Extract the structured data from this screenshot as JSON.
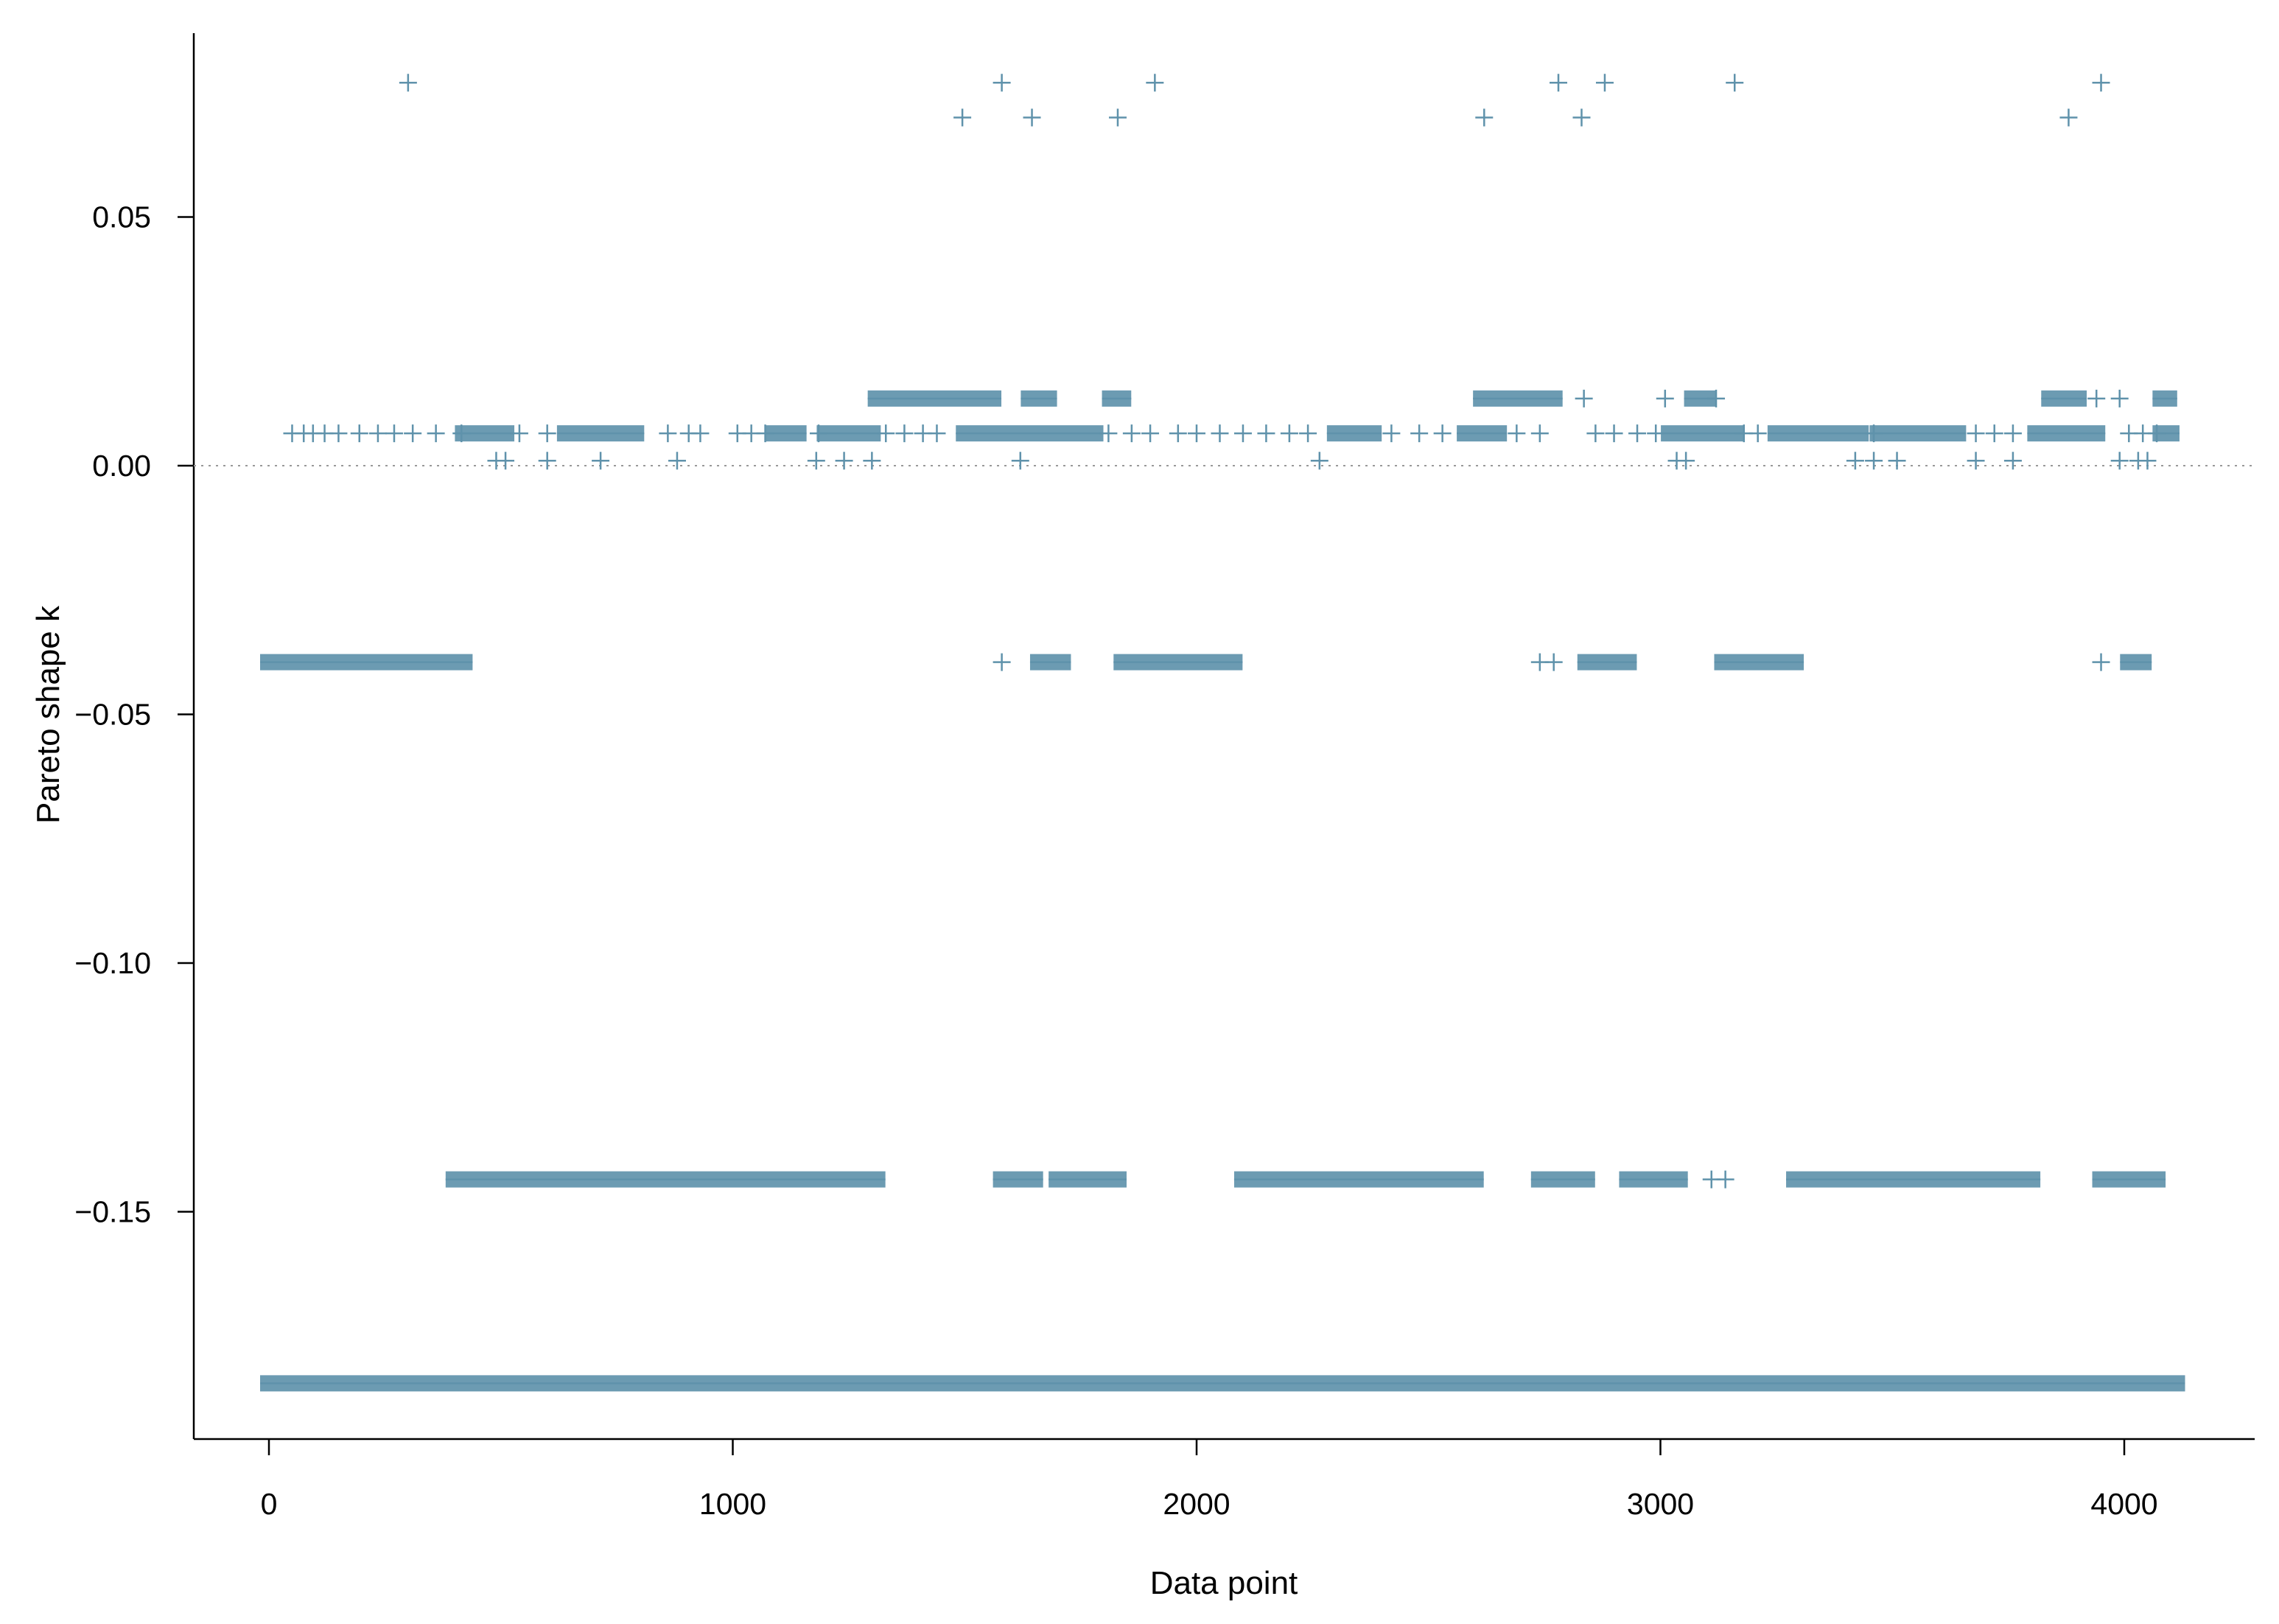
{
  "chart_data": {
    "type": "scatter",
    "title": "",
    "xlabel": "Data point",
    "ylabel": "Pareto shape k",
    "xlim": [
      -200,
      4300
    ],
    "ylim": [
      -0.195,
      0.085
    ],
    "x_ticks": [
      0,
      1000,
      2000,
      3000,
      4000
    ],
    "x_tick_labels": [
      "0",
      "1000",
      "2000",
      "3000",
      "4000"
    ],
    "y_ticks": [
      0.05,
      0.0,
      -0.05,
      -0.1,
      -0.15
    ],
    "y_tick_labels": [
      "0.05",
      "0.00",
      "−0.05",
      "−0.10",
      "−0.15"
    ],
    "reference_line": {
      "y": 0.0,
      "style": "dotted"
    },
    "marker": "+",
    "colors": {
      "points": "#5f92ab",
      "axis": "#000000",
      "reference": "#999999"
    },
    "grid": false,
    "legend": "none",
    "n_points": 4112,
    "levels": [
      {
        "k": 0.077,
        "points": [
          300,
          1580,
          1910,
          2780,
          2880,
          3160,
          3950
        ]
      },
      {
        "k": 0.07,
        "points": [
          1495,
          1645,
          1830,
          2620,
          2830,
          3880
        ]
      },
      {
        "k": 0.0135,
        "clusters": [
          [
            1310,
            1560
          ],
          [
            1640,
            1680
          ],
          [
            1815,
            1840
          ],
          [
            2615,
            2770
          ],
          [
            3070,
            3100
          ],
          [
            3840,
            3900
          ],
          [
            4080,
            4095
          ]
        ],
        "points": [
          2835,
          3010,
          3120,
          3940,
          3990
        ]
      },
      {
        "k": 0.0065,
        "clusters": [
          [
            420,
            510
          ],
          [
            640,
            790
          ],
          [
            1090,
            1140
          ],
          [
            1200,
            1300
          ],
          [
            1500,
            1780
          ],
          [
            2300,
            2380
          ],
          [
            2580,
            2650
          ],
          [
            3020,
            3160
          ],
          [
            3250,
            3430
          ],
          [
            3470,
            3640
          ],
          [
            3810,
            3940
          ],
          [
            4080,
            4100
          ]
        ],
        "points": [
          50,
          75,
          95,
          120,
          150,
          195,
          235,
          270,
          310,
          360,
          415,
          540,
          600,
          860,
          905,
          930,
          1010,
          1040,
          1070,
          1185,
          1330,
          1370,
          1410,
          1440,
          1810,
          1860,
          1900,
          1960,
          2000,
          2050,
          2100,
          2150,
          2200,
          2240,
          2420,
          2480,
          2530,
          2690,
          2740,
          2860,
          2900,
          2950,
          2990,
          3180,
          3210,
          3460,
          3680,
          3720,
          3760,
          4010,
          4040,
          4070
        ]
      },
      {
        "k": 0.001,
        "points": [
          490,
          510,
          600,
          715,
          880,
          1180,
          1240,
          1300,
          1620,
          2265,
          3035,
          3055,
          3420,
          3460,
          3510,
          3680,
          3760,
          3990,
          4030,
          4050
        ]
      },
      {
        "k": -0.0395,
        "clusters": [
          [
            0,
            420
          ],
          [
            1660,
            1710
          ],
          [
            1840,
            2080
          ],
          [
            2840,
            2930
          ],
          [
            3135,
            3290
          ],
          [
            4010,
            4040
          ]
        ],
        "points": [
          1580,
          2740,
          2770,
          3950
        ]
      },
      {
        "k": -0.1435,
        "clusters": [
          [
            400,
            1310
          ],
          [
            1580,
            1650
          ],
          [
            1700,
            1830
          ],
          [
            2100,
            2600
          ],
          [
            2740,
            2840
          ],
          [
            2930,
            3040
          ],
          [
            3290,
            3800
          ],
          [
            3950,
            4070
          ]
        ],
        "points": [
          3110,
          3140
        ]
      },
      {
        "k": -0.1845,
        "clusters": [
          [
            0,
            4112
          ]
        ]
      }
    ]
  }
}
